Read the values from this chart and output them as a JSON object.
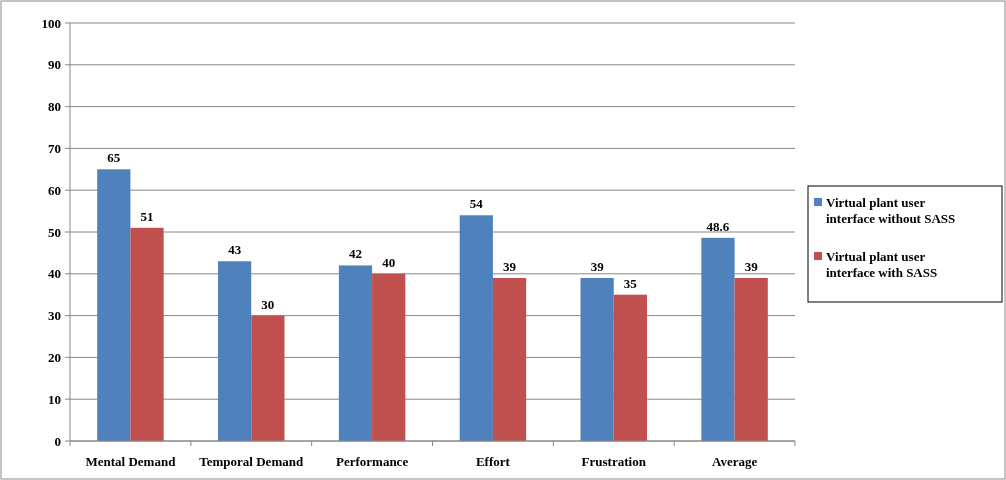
{
  "chart_data": {
    "type": "bar",
    "categories": [
      "Mental Demand",
      "Temporal Demand",
      "Performance",
      "Effort",
      "Frustration",
      "Average"
    ],
    "series": [
      {
        "name": "Virtual plant user interface without SASS",
        "color": "#4f81bd",
        "values": [
          65,
          43,
          42,
          54,
          39,
          48.6
        ]
      },
      {
        "name": "Virtual plant user interface with SASS",
        "color": "#c0504d",
        "values": [
          51,
          30,
          40,
          39,
          35,
          39
        ]
      }
    ],
    "ylim": [
      0,
      100
    ],
    "yticks": [
      0,
      10,
      20,
      30,
      40,
      50,
      60,
      70,
      80,
      90,
      100
    ],
    "grid": "y",
    "legend": "right",
    "data_labels": true
  }
}
